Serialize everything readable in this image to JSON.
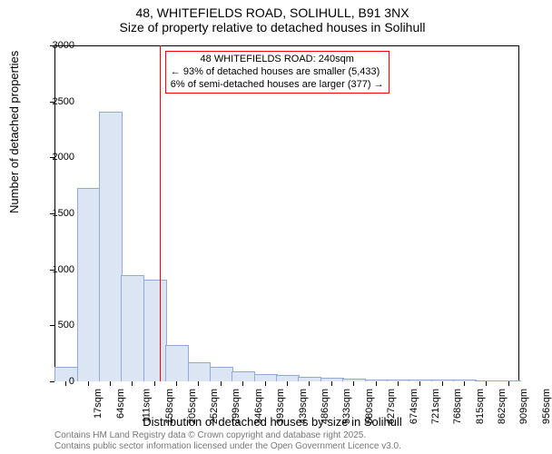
{
  "title_line1": "48, WHITEFIELDS ROAD, SOLIHULL, B91 3NX",
  "title_line2": "Size of property relative to detached houses in Solihull",
  "y_axis_label": "Number of detached properties",
  "x_axis_label": "Distribution of detached houses by size in Solihull",
  "chart": {
    "type": "histogram",
    "background_color": "#ffffff",
    "border_color": "#000000",
    "bar_fill": "#dbe5f4",
    "bar_stroke": "#8faadc",
    "ref_line_color": "#ff0000",
    "annotation_border": "#ff0000",
    "ylim": [
      0,
      3000
    ],
    "ytick_step": 500,
    "yticks": [
      0,
      500,
      1000,
      1500,
      2000,
      2500,
      3000
    ],
    "x_categories": [
      "17sqm",
      "64sqm",
      "111sqm",
      "158sqm",
      "205sqm",
      "252sqm",
      "299sqm",
      "346sqm",
      "393sqm",
      "439sqm",
      "486sqm",
      "533sqm",
      "580sqm",
      "627sqm",
      "674sqm",
      "721sqm",
      "768sqm",
      "815sqm",
      "862sqm",
      "909sqm",
      "956sqm"
    ],
    "values": [
      120,
      1720,
      2400,
      940,
      900,
      320,
      160,
      120,
      80,
      60,
      45,
      30,
      25,
      15,
      12,
      10,
      8,
      6,
      5,
      4,
      3
    ],
    "ref_line_index": 4.75,
    "annotation": {
      "line1": "48 WHITEFIELDS ROAD: 240sqm",
      "line2": "← 93% of detached houses are smaller (5,433)",
      "line3": "6% of semi-detached houses are larger (377) →"
    },
    "label_fontsize": 11,
    "axis_fontsize": 13
  },
  "footer_line1": "Contains HM Land Registry data © Crown copyright and database right 2025.",
  "footer_line2": "Contains public sector information licensed under the Open Government Licence v3.0."
}
